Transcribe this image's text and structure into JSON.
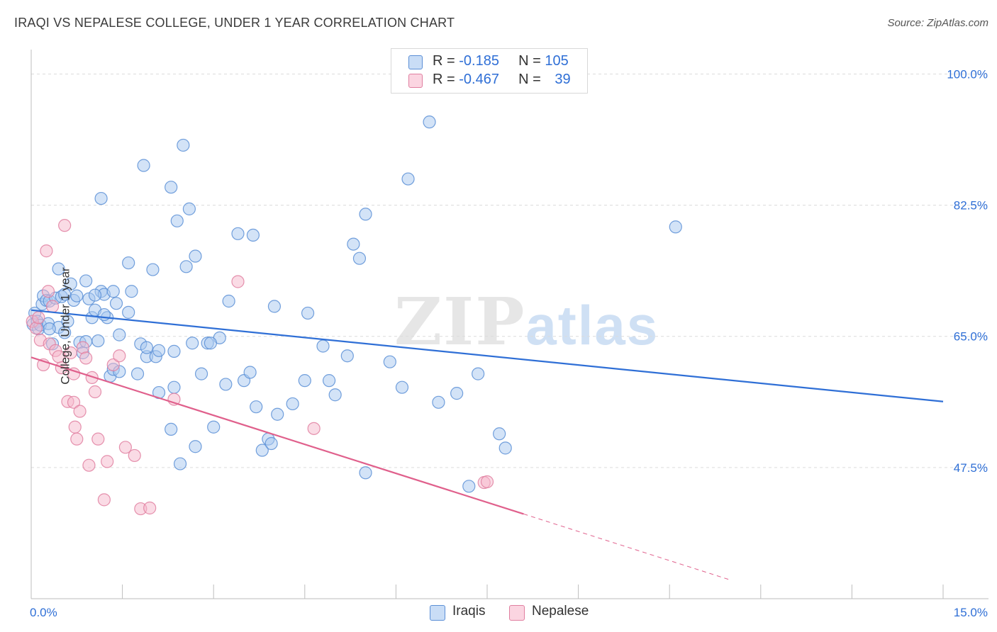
{
  "title": "IRAQI VS NEPALESE COLLEGE, UNDER 1 YEAR CORRELATION CHART",
  "source": "Source: ZipAtlas.com",
  "watermark": {
    "part1": "ZIP",
    "part2": "atlas"
  },
  "legend_top": [
    {
      "swatch_color": "#a8c8f0",
      "r_label": "R =",
      "r_value": "-0.185",
      "n_label": "N =",
      "n_value": "105"
    },
    {
      "swatch_color": "#f6b8cb",
      "r_label": "R =",
      "r_value": "-0.467",
      "n_label": "N =",
      "n_value": "39"
    }
  ],
  "legend_bottom": [
    {
      "label": "Iraqis",
      "swatch_color": "#a8c8f0"
    },
    {
      "label": "Nepalese",
      "swatch_color": "#f6b8cb"
    }
  ],
  "chart_data": {
    "type": "scatter",
    "title": "IRAQI VS NEPALESE COLLEGE, UNDER 1 YEAR CORRELATION CHART",
    "xlabel": "",
    "ylabel": "College, Under 1 year",
    "x_tick_labels": [
      "0.0%",
      "15.0%"
    ],
    "y_tick_labels": [
      "100.0%",
      "82.5%",
      "65.0%",
      "47.5%"
    ],
    "y_ticks": [
      100.0,
      82.5,
      65.0,
      47.5
    ],
    "xlim": [
      0,
      15
    ],
    "ylim": [
      30,
      102.5
    ],
    "grid": true,
    "legend_position": "top-center",
    "colors": {
      "iraqis_fill": "#a8c8f0",
      "iraqis_stroke": "#5b8fd6",
      "iraqis_line": "#2f6fd6",
      "nepalese_fill": "#f6b8cb",
      "nepalese_stroke": "#e07fa0",
      "nepalese_line": "#e0608c",
      "tick_label": "#2f6fd6"
    },
    "series": [
      {
        "name": "Iraqis",
        "points": [
          [
            0.03,
            66.6
          ],
          [
            0.06,
            68.1
          ],
          [
            0.1,
            67.0
          ],
          [
            0.12,
            66.0
          ],
          [
            0.15,
            66.5
          ],
          [
            0.18,
            69.3
          ],
          [
            0.2,
            70.4
          ],
          [
            0.25,
            69.8
          ],
          [
            0.28,
            66.7
          ],
          [
            0.3,
            69.7
          ],
          [
            0.35,
            64.0
          ],
          [
            0.4,
            70.1
          ],
          [
            0.45,
            66.2
          ],
          [
            0.5,
            70.3
          ],
          [
            0.55,
            65.5
          ],
          [
            0.6,
            67.0
          ],
          [
            0.65,
            72.0
          ],
          [
            0.7,
            69.8
          ],
          [
            0.75,
            70.4
          ],
          [
            0.8,
            64.2
          ],
          [
            0.85,
            62.8
          ],
          [
            0.9,
            72.4
          ],
          [
            0.95,
            70.0
          ],
          [
            1.0,
            67.5
          ],
          [
            1.05,
            68.5
          ],
          [
            1.1,
            64.4
          ],
          [
            1.15,
            71.0
          ],
          [
            1.2,
            70.6
          ],
          [
            1.25,
            67.5
          ],
          [
            1.3,
            59.7
          ],
          [
            1.35,
            71.0
          ],
          [
            1.4,
            69.4
          ],
          [
            1.45,
            65.2
          ],
          [
            1.6,
            74.8
          ],
          [
            1.65,
            71.0
          ],
          [
            1.75,
            60.0
          ],
          [
            1.8,
            64.0
          ],
          [
            1.9,
            62.3
          ],
          [
            2.0,
            73.9
          ],
          [
            2.05,
            62.3
          ],
          [
            2.1,
            57.5
          ],
          [
            2.3,
            52.6
          ],
          [
            2.35,
            63.0
          ],
          [
            2.4,
            80.4
          ],
          [
            2.45,
            48.0
          ],
          [
            2.55,
            74.3
          ],
          [
            2.65,
            64.1
          ],
          [
            2.7,
            50.3
          ],
          [
            2.8,
            60.0
          ],
          [
            2.9,
            64.1
          ],
          [
            0.45,
            74.0
          ],
          [
            1.15,
            83.4
          ],
          [
            1.85,
            87.8
          ],
          [
            2.3,
            84.9
          ],
          [
            2.5,
            90.5
          ],
          [
            2.6,
            82.0
          ],
          [
            2.7,
            75.7
          ],
          [
            3.0,
            52.9
          ],
          [
            3.1,
            64.8
          ],
          [
            3.2,
            58.6
          ],
          [
            3.25,
            69.7
          ],
          [
            3.4,
            78.7
          ],
          [
            3.5,
            59.1
          ],
          [
            3.6,
            60.2
          ],
          [
            3.65,
            78.5
          ],
          [
            3.8,
            49.8
          ],
          [
            3.9,
            51.3
          ],
          [
            3.7,
            55.6
          ],
          [
            4.0,
            69.0
          ],
          [
            4.05,
            54.6
          ],
          [
            4.3,
            56.0
          ],
          [
            4.5,
            59.1
          ],
          [
            4.55,
            68.1
          ],
          [
            4.8,
            63.7
          ],
          [
            4.9,
            59.1
          ],
          [
            5.0,
            57.2
          ],
          [
            5.2,
            62.4
          ],
          [
            5.3,
            77.3
          ],
          [
            5.4,
            75.4
          ],
          [
            5.5,
            46.8
          ],
          [
            5.5,
            81.3
          ],
          [
            5.9,
            61.6
          ],
          [
            6.1,
            58.2
          ],
          [
            6.2,
            86.0
          ],
          [
            6.55,
            93.6
          ],
          [
            6.7,
            56.2
          ],
          [
            7.0,
            57.4
          ],
          [
            7.2,
            45.0
          ],
          [
            7.35,
            60.0
          ],
          [
            7.7,
            52.0
          ],
          [
            7.8,
            50.1
          ],
          [
            10.6,
            79.6
          ],
          [
            1.35,
            60.6
          ],
          [
            1.6,
            68.2
          ],
          [
            1.05,
            70.5
          ],
          [
            0.9,
            64.3
          ],
          [
            2.1,
            63.1
          ],
          [
            1.9,
            63.5
          ],
          [
            0.55,
            70.6
          ],
          [
            3.95,
            50.7
          ],
          [
            2.35,
            58.2
          ],
          [
            1.45,
            60.3
          ],
          [
            2.95,
            64.1
          ],
          [
            1.2,
            67.9
          ],
          [
            0.3,
            66.0
          ]
        ]
      },
      {
        "name": "Nepalese",
        "points": [
          [
            0.02,
            67.0
          ],
          [
            0.08,
            66.1
          ],
          [
            0.12,
            67.5
          ],
          [
            0.15,
            64.5
          ],
          [
            0.2,
            61.2
          ],
          [
            0.25,
            76.4
          ],
          [
            0.28,
            71.0
          ],
          [
            0.3,
            64.0
          ],
          [
            0.35,
            69.0
          ],
          [
            0.4,
            63.1
          ],
          [
            0.45,
            62.3
          ],
          [
            0.5,
            60.8
          ],
          [
            0.55,
            79.8
          ],
          [
            0.6,
            56.3
          ],
          [
            0.65,
            62.8
          ],
          [
            0.7,
            56.2
          ],
          [
            0.72,
            52.9
          ],
          [
            0.75,
            51.3
          ],
          [
            0.8,
            55.0
          ],
          [
            0.85,
            63.5
          ],
          [
            0.9,
            62.1
          ],
          [
            0.95,
            47.8
          ],
          [
            1.0,
            59.5
          ],
          [
            1.05,
            57.6
          ],
          [
            1.1,
            51.3
          ],
          [
            1.2,
            43.2
          ],
          [
            1.25,
            48.3
          ],
          [
            1.35,
            61.2
          ],
          [
            1.45,
            62.4
          ],
          [
            1.55,
            50.2
          ],
          [
            1.7,
            49.1
          ],
          [
            1.8,
            42.0
          ],
          [
            1.95,
            42.1
          ],
          [
            2.35,
            56.6
          ],
          [
            3.4,
            72.3
          ],
          [
            4.65,
            52.7
          ],
          [
            7.45,
            45.5
          ],
          [
            7.5,
            45.6
          ],
          [
            0.7,
            60.0
          ]
        ]
      }
    ],
    "trendlines": [
      {
        "series": "Iraqis",
        "x": [
          0,
          15
        ],
        "y": [
          68.5,
          56.3
        ],
        "style": "solid"
      },
      {
        "series": "Nepalese",
        "x": [
          0,
          8.1
        ],
        "y": [
          62.2,
          41.3
        ],
        "style": "solid"
      },
      {
        "series": "Nepalese",
        "x": [
          8.1,
          11.5
        ],
        "y": [
          41.3,
          32.5
        ],
        "style": "dashed"
      }
    ]
  }
}
